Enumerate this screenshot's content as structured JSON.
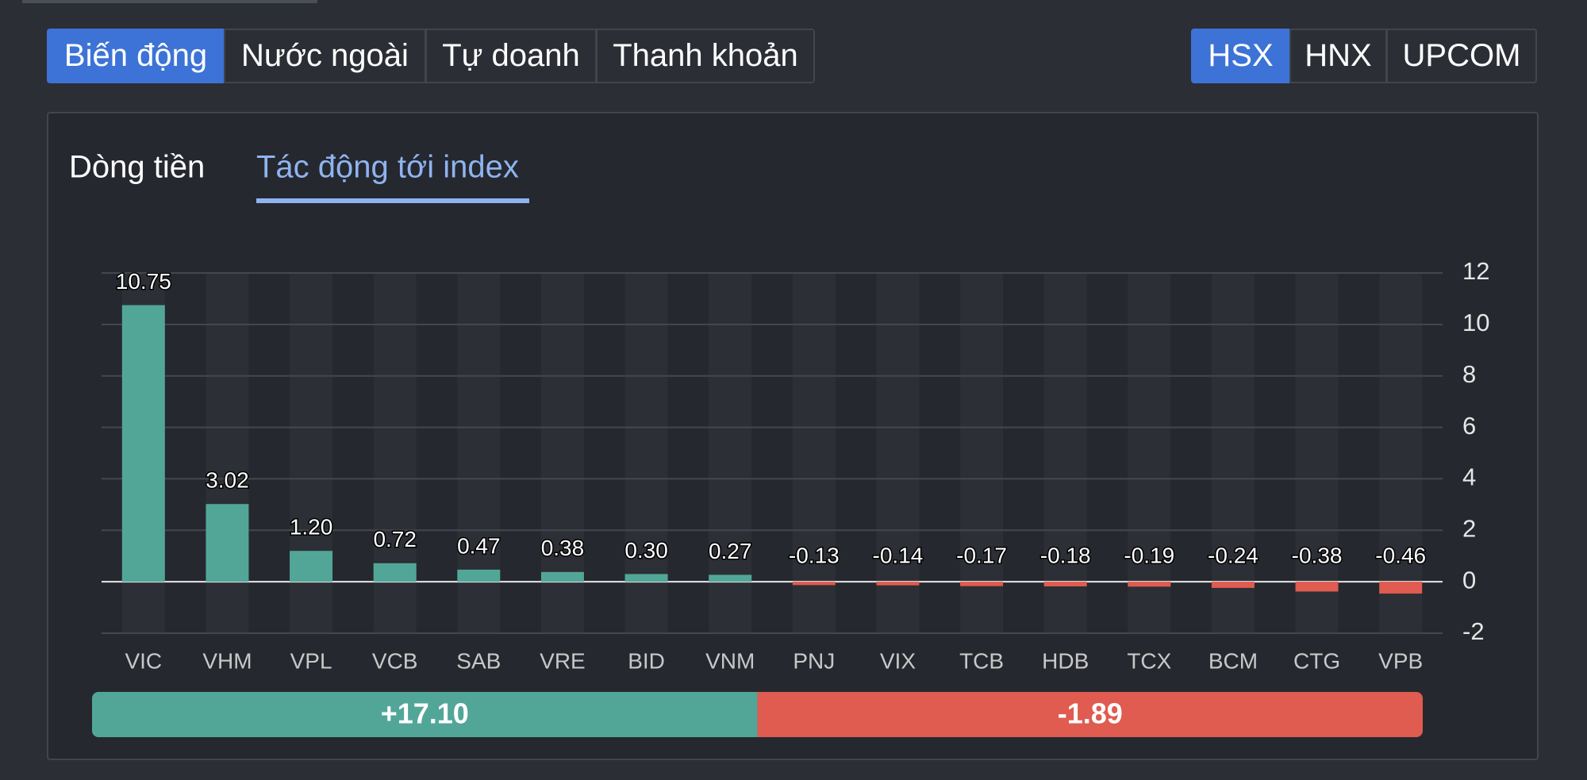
{
  "tabs": [
    "Biến động",
    "Nước ngoài",
    "Tự doanh",
    "Thanh khoản"
  ],
  "exchanges": [
    "HSX",
    "HNX",
    "UPCOM"
  ],
  "subtabs": [
    "Dòng tiền",
    "Tác động tới index"
  ],
  "chart_data": {
    "type": "bar",
    "categories": [
      "VIC",
      "VHM",
      "VPL",
      "VCB",
      "SAB",
      "VRE",
      "BID",
      "VNM",
      "PNJ",
      "VIX",
      "TCB",
      "HDB",
      "TCX",
      "BCM",
      "CTG",
      "VPB"
    ],
    "values": [
      10.75,
      3.02,
      1.2,
      0.72,
      0.47,
      0.38,
      0.3,
      0.27,
      -0.13,
      -0.14,
      -0.17,
      -0.18,
      -0.19,
      -0.24,
      -0.38,
      -0.46
    ],
    "value_labels": [
      "10.75",
      "3.02",
      "1.20",
      "0.72",
      "0.47",
      "0.38",
      "0.30",
      "0.27",
      "-0.13",
      "-0.14",
      "-0.17",
      "-0.18",
      "-0.19",
      "-0.24",
      "-0.38",
      "-0.46"
    ],
    "positive_color": "#52a698",
    "negative_color": "#e05b50",
    "ylim": [
      -2,
      12
    ],
    "yticks": [
      -2,
      0,
      2,
      4,
      6,
      8,
      10,
      12
    ],
    "grid": true,
    "summary": {
      "positive": 17.1,
      "positive_label": "+17.10",
      "negative": -1.89
    }
  }
}
